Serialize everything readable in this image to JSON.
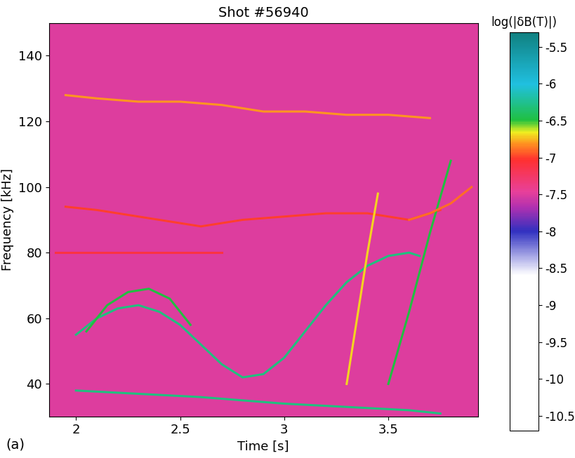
{
  "chart_data": {
    "type": "spectrogram",
    "title": "Shot #56940",
    "x_label": "Time [s]",
    "y_label": "Frequency [kHz]",
    "panel_label": "(a)",
    "xlim": [
      1.87,
      3.93
    ],
    "xticks": [
      2,
      2.5,
      3,
      3.5
    ],
    "ylim": [
      30,
      150
    ],
    "yticks": [
      40,
      60,
      80,
      100,
      120,
      140
    ],
    "background_level": -7.5,
    "colorbar": {
      "label": "log(|δB(T)|)",
      "range": [
        -10.7,
        -5.3
      ],
      "ticks": [
        -5.5,
        -6,
        -6.5,
        -7,
        -7.5,
        -8,
        -8.5,
        -9,
        -9.5,
        -10,
        -10.5
      ]
    },
    "series": [
      {
        "x": [
          1.95,
          2.1,
          2.3,
          2.5,
          2.7,
          2.9,
          3.1,
          3.3,
          3.5,
          3.7
        ],
        "values": [
          128,
          127,
          126,
          126,
          125,
          123,
          123,
          122,
          122,
          121
        ],
        "level": -6.8
      },
      {
        "x": [
          1.95,
          2.1,
          2.3,
          2.5,
          2.6,
          2.8,
          3.0,
          3.2,
          3.4,
          3.6,
          3.75
        ],
        "values": [
          94,
          93,
          91,
          89,
          88,
          90,
          91,
          92,
          92,
          90,
          93
        ],
        "level": -7
      },
      {
        "x": [
          1.9,
          2.2,
          2.5,
          2.7
        ],
        "values": [
          80,
          80,
          80,
          80
        ],
        "level": -7.1
      },
      {
        "x": [
          2.0,
          2.1,
          2.2,
          2.3,
          2.4,
          2.5,
          2.6,
          2.7,
          2.8,
          2.9,
          3.0,
          3.1,
          3.2,
          3.3,
          3.4,
          3.5,
          3.6,
          3.65
        ],
        "values": [
          55,
          60,
          63,
          64,
          62,
          58,
          52,
          46,
          42,
          43,
          48,
          56,
          64,
          71,
          76,
          79,
          80,
          79
        ],
        "level": -6.3
      },
      {
        "x": [
          2.0,
          2.3,
          2.6,
          3.0,
          3.3,
          3.6,
          3.75
        ],
        "values": [
          38,
          37,
          36,
          34,
          33,
          32,
          31
        ],
        "level": -6.3
      },
      {
        "x": [
          2.05,
          2.15,
          2.25,
          2.35,
          2.45,
          2.55
        ],
        "values": [
          56,
          64,
          68,
          69,
          66,
          58
        ],
        "level": -6.5
      },
      {
        "x": [
          3.3,
          3.35,
          3.4,
          3.45
        ],
        "values": [
          40,
          60,
          80,
          98
        ],
        "level": -6.7
      },
      {
        "x": [
          3.5,
          3.6,
          3.7,
          3.8
        ],
        "values": [
          40,
          62,
          86,
          108
        ],
        "level": -6.5
      },
      {
        "x": [
          3.6,
          3.7,
          3.8,
          3.9
        ],
        "values": [
          90,
          92,
          95,
          100
        ],
        "level": -6.9
      }
    ]
  }
}
